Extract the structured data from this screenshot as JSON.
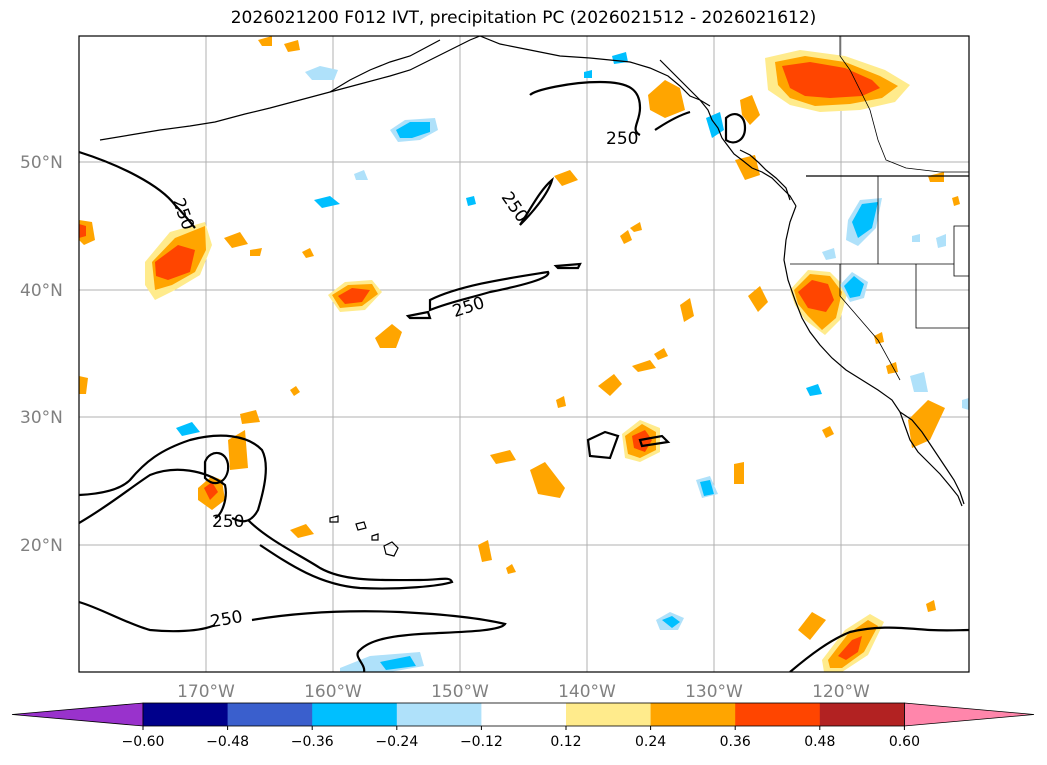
{
  "title": "2026021200 F012 IVT, precipitation PC (2026021512 - 2026021612)",
  "lat_labels": [
    "50°N",
    "40°N",
    "30°N",
    "20°N"
  ],
  "lon_labels": [
    "170°W",
    "160°W",
    "150°W",
    "140°W",
    "130°W",
    "120°W"
  ],
  "contour_labels": [
    "250",
    "250",
    "250",
    "250",
    "250",
    "250"
  ],
  "colorbar": {
    "ticks": [
      "−0.60",
      "−0.48",
      "−0.36",
      "−0.24",
      "−0.12",
      "0.12",
      "0.24",
      "0.36",
      "0.48",
      "0.60"
    ],
    "colors": [
      "#9932cc",
      "#00008b",
      "#3a5fcd",
      "#00bfff",
      "#afe1fa",
      "#ffffff",
      "#ffeb8c",
      "#ffa500",
      "#ff4500",
      "#b22222",
      "#ff86ab"
    ]
  },
  "colors": {
    "frame": "#000000",
    "grid": "#b0b0b0",
    "coast": "#000000",
    "contour": "#000000"
  }
}
